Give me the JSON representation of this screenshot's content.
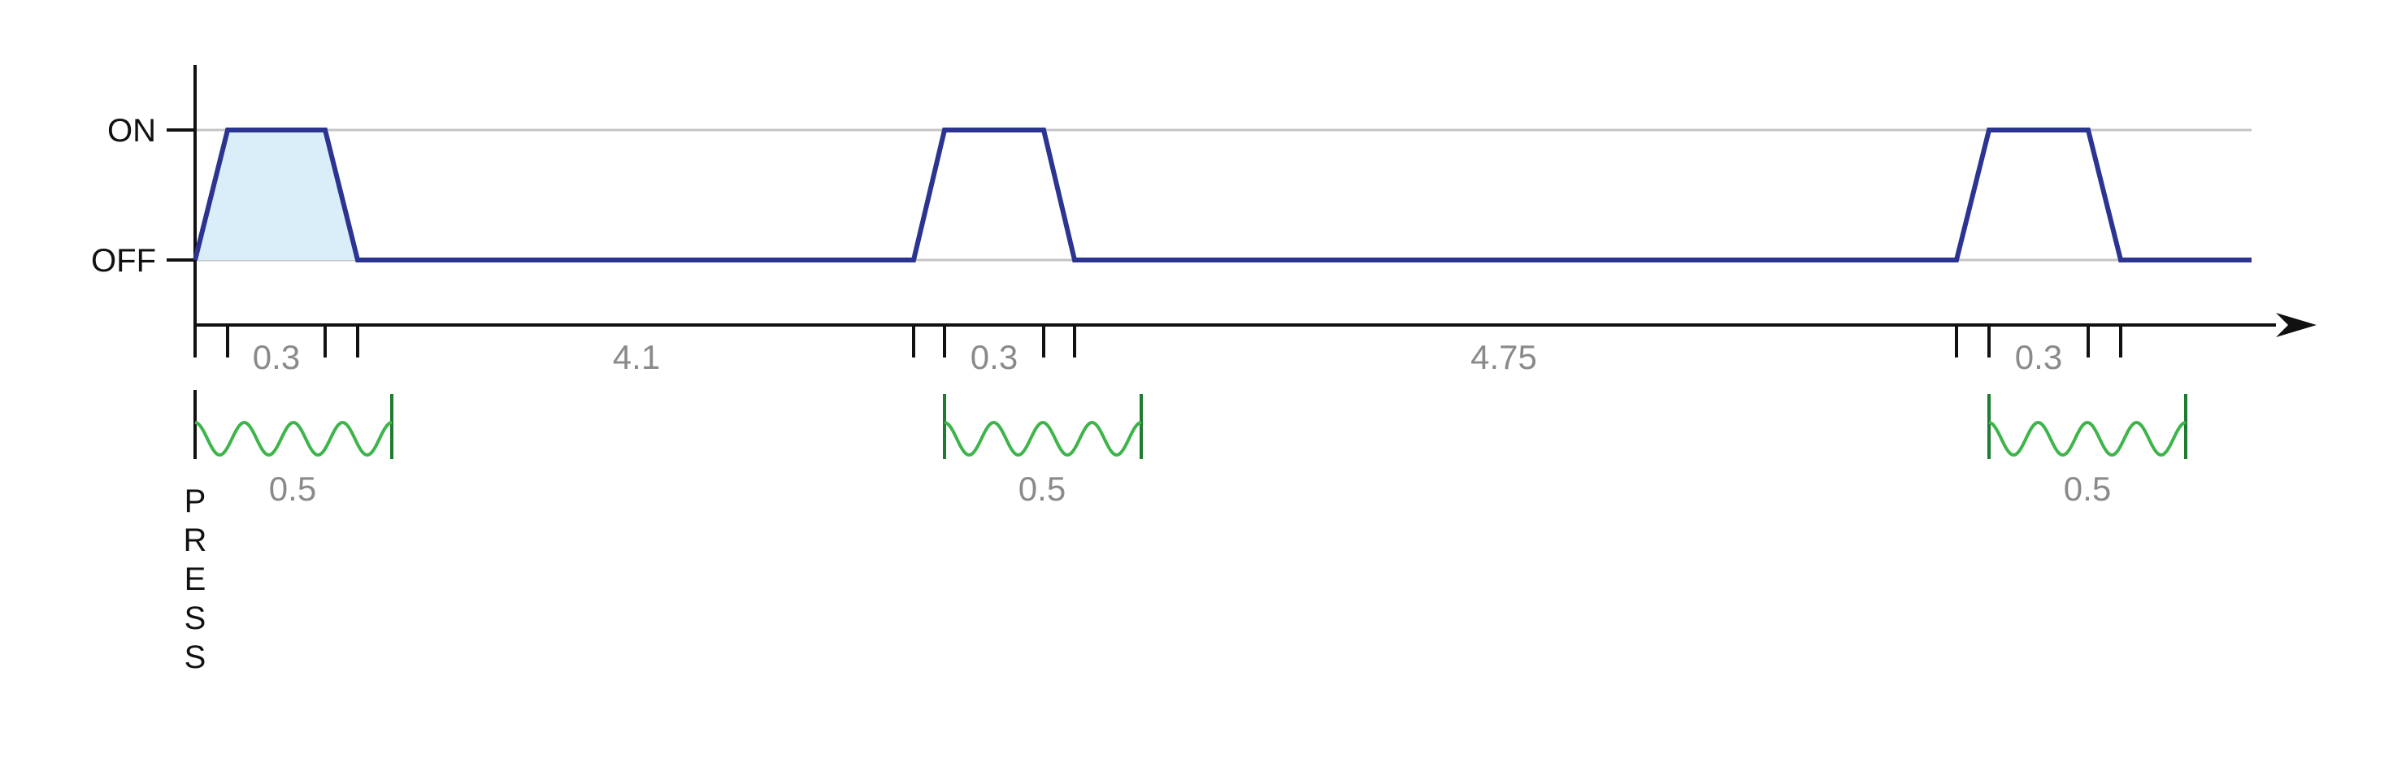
{
  "levels": {
    "on": "ON",
    "off": "OFF"
  },
  "durations": {
    "pulse1": "0.3",
    "gap1": "4.1",
    "pulse2": "0.3",
    "gap2": "4.75",
    "pulse3": "0.3"
  },
  "vibration": {
    "v1": "0.5",
    "v2": "0.5",
    "v3": "0.5"
  },
  "press_label": [
    "P",
    "R",
    "E",
    "S",
    "S"
  ],
  "colors": {
    "signal": "#2b3491",
    "fill": "#d9eef8",
    "axis": "#111111",
    "guide": "#c4c4c4",
    "wave": "#3db54a",
    "bracket": "#1f7a32",
    "label": "#8a8a8a"
  }
}
